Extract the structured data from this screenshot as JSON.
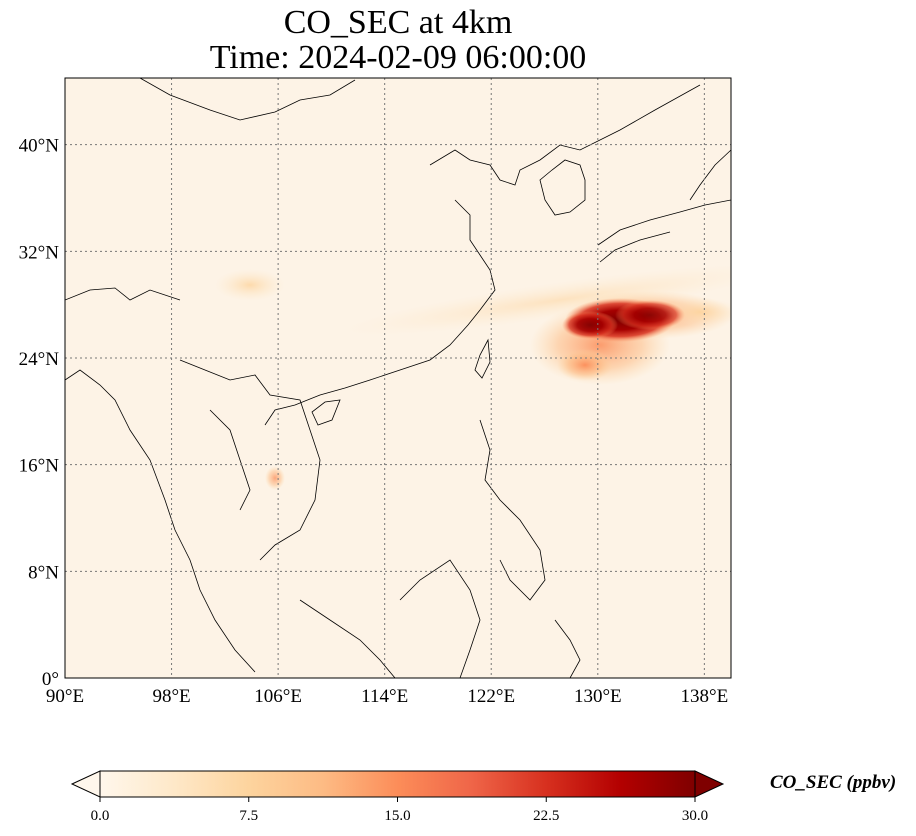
{
  "title": {
    "line1": "CO_SEC at 4km",
    "line2": "Time: 2024-02-09 06:00:00"
  },
  "map": {
    "lon_range": [
      90,
      140
    ],
    "lat_range": [
      0,
      45
    ],
    "gridlines": true,
    "lon_ticks": [
      {
        "value": 90,
        "label": "90°E"
      },
      {
        "value": 98,
        "label": "98°E"
      },
      {
        "value": 106,
        "label": "106°E"
      },
      {
        "value": 114,
        "label": "114°E"
      },
      {
        "value": 122,
        "label": "122°E"
      },
      {
        "value": 130,
        "label": "130°E"
      },
      {
        "value": 138,
        "label": "138°E"
      }
    ],
    "lat_ticks": [
      {
        "value": 0,
        "label": "0°"
      },
      {
        "value": 8,
        "label": "8°N"
      },
      {
        "value": 16,
        "label": "16°N"
      },
      {
        "value": 24,
        "label": "24°N"
      },
      {
        "value": 32,
        "label": "32°N"
      },
      {
        "value": 40,
        "label": "40°N"
      }
    ]
  },
  "colorbar": {
    "label": "CO_SEC (ppbv)",
    "min": 0,
    "max": 30,
    "extend": "both",
    "colormap": [
      "#fff7ec",
      "#fee8c8",
      "#fdd49e",
      "#fdbb84",
      "#fc8d59",
      "#ef6548",
      "#d7301f",
      "#b30000",
      "#7f0000"
    ],
    "ticks": [
      {
        "value": 0,
        "label": "0.0"
      },
      {
        "value": 7.5,
        "label": "7.5"
      },
      {
        "value": 15,
        "label": "15.0"
      },
      {
        "value": 22.5,
        "label": "22.5"
      },
      {
        "value": 30,
        "label": "30.0"
      }
    ]
  }
}
